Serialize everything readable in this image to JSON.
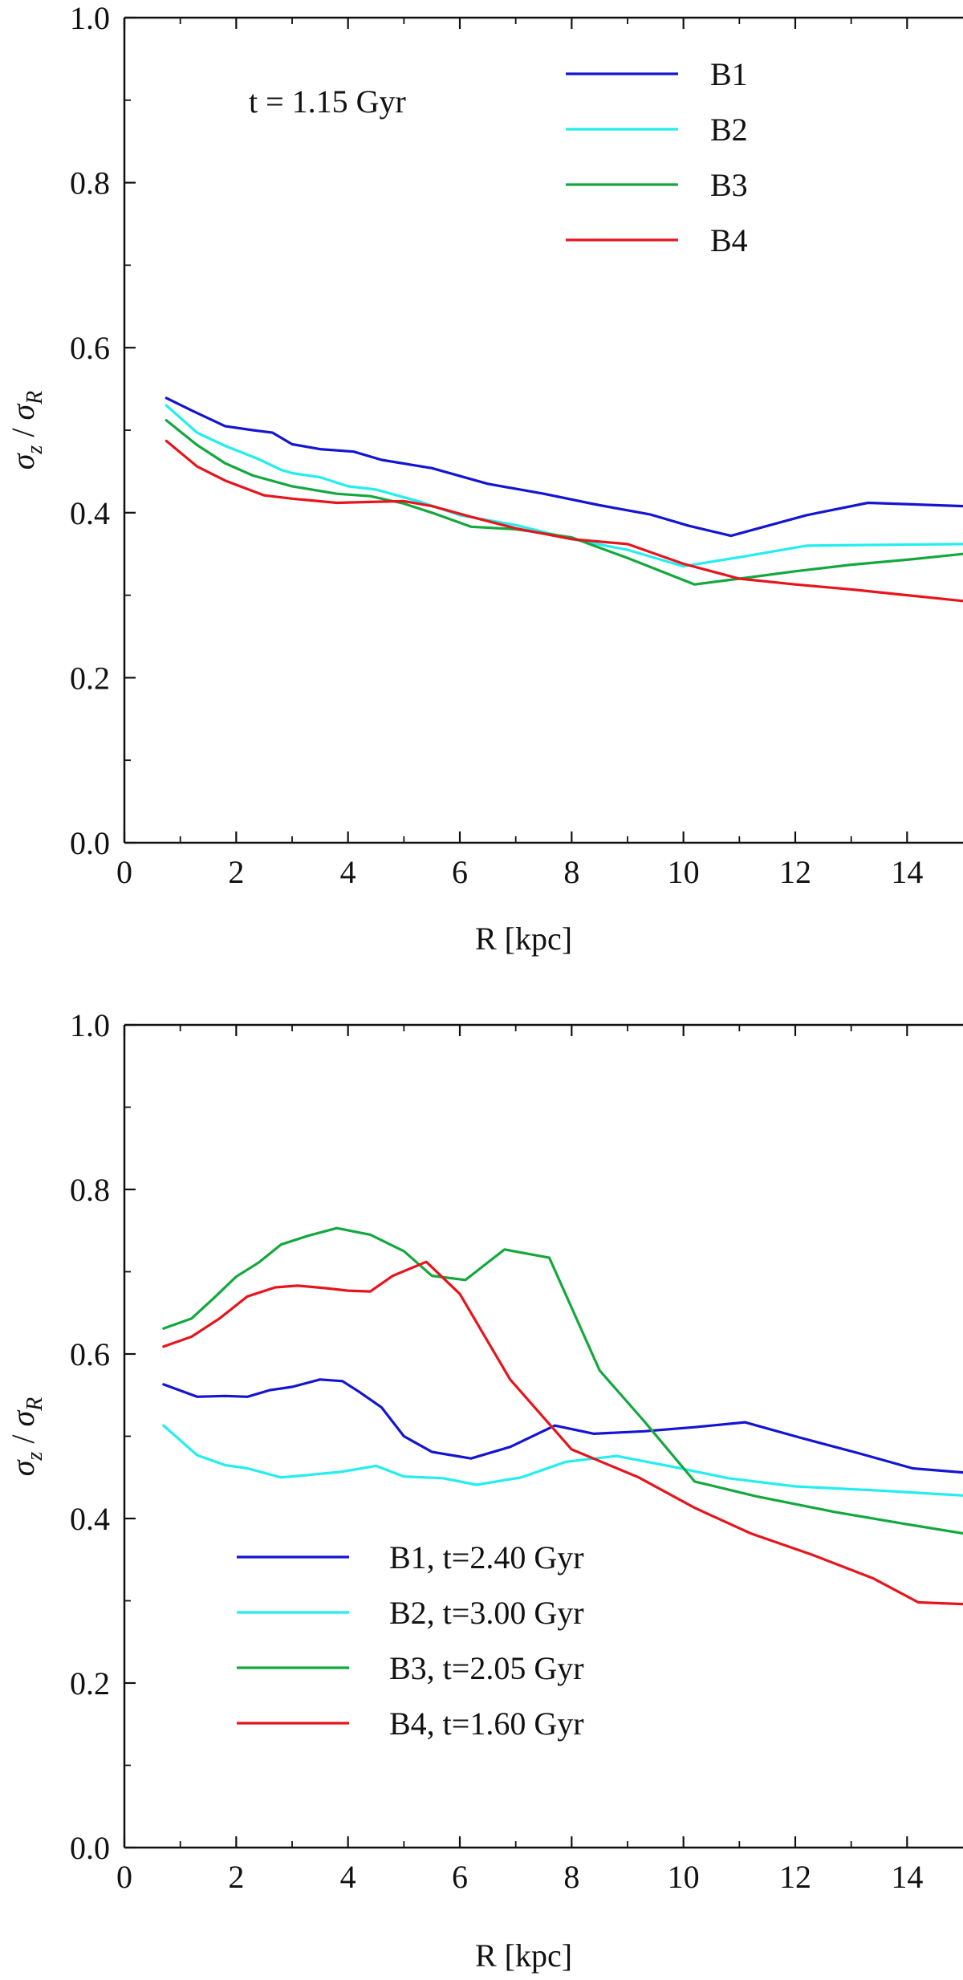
{
  "chart_data": [
    {
      "type": "line",
      "title": "",
      "annotation": "t = 1.15 Gyr",
      "xlabel": "R [kpc]",
      "ylabel": "σz / σR",
      "ylabel_parts": {
        "sigma": "σ",
        "num_sub": "z",
        "sep": " / ",
        "den_sub": "R"
      },
      "xlim": [
        0,
        15
      ],
      "ylim": [
        0,
        1
      ],
      "xticks": [
        "0",
        "2",
        "4",
        "6",
        "8",
        "10",
        "12",
        "14"
      ],
      "yticks": [
        "0.0",
        "0.2",
        "0.4",
        "0.6",
        "0.8",
        "1.0"
      ],
      "grid": false,
      "legend_position": "top-right",
      "series": [
        {
          "name": "B1",
          "color": "#1414d2",
          "x": [
            0.75,
            1.2,
            1.8,
            2.3,
            2.65,
            3.0,
            3.5,
            4.1,
            4.6,
            5.5,
            6.5,
            7.5,
            8.5,
            9.4,
            10.1,
            10.85,
            12.2,
            13.3,
            15.0
          ],
          "y": [
            0.539,
            0.524,
            0.505,
            0.5,
            0.497,
            0.483,
            0.477,
            0.474,
            0.464,
            0.454,
            0.435,
            0.423,
            0.409,
            0.398,
            0.384,
            0.372,
            0.397,
            0.412,
            0.408
          ]
        },
        {
          "name": "B2",
          "color": "#22eeee",
          "x": [
            0.75,
            1.3,
            1.8,
            2.4,
            2.8,
            3.0,
            3.5,
            4.0,
            4.5,
            5.3,
            6.0,
            7.0,
            8.0,
            9.0,
            10.0,
            11.0,
            12.2,
            13.5,
            15.0
          ],
          "y": [
            0.53,
            0.497,
            0.481,
            0.465,
            0.452,
            0.448,
            0.443,
            0.432,
            0.428,
            0.413,
            0.397,
            0.385,
            0.368,
            0.355,
            0.335,
            0.346,
            0.36,
            0.361,
            0.362
          ]
        },
        {
          "name": "B3",
          "color": "#13a83e",
          "x": [
            0.75,
            1.3,
            1.8,
            2.3,
            3.0,
            3.8,
            4.4,
            5.0,
            5.5,
            6.2,
            7.0,
            8.0,
            9.0,
            10.2,
            11.0,
            12.0,
            13.0,
            14.0,
            15.0
          ],
          "y": [
            0.512,
            0.482,
            0.46,
            0.445,
            0.432,
            0.423,
            0.42,
            0.411,
            0.4,
            0.383,
            0.38,
            0.37,
            0.345,
            0.313,
            0.32,
            0.329,
            0.337,
            0.343,
            0.35
          ]
        },
        {
          "name": "B4",
          "color": "#e8141c",
          "x": [
            0.75,
            1.3,
            1.8,
            2.5,
            3.0,
            3.8,
            4.4,
            5.0,
            5.5,
            6.2,
            7.0,
            8.0,
            9.0,
            10.0,
            11.0,
            12.0,
            13.0,
            14.0,
            15.0
          ],
          "y": [
            0.487,
            0.456,
            0.439,
            0.421,
            0.417,
            0.412,
            0.413,
            0.414,
            0.408,
            0.395,
            0.381,
            0.368,
            0.362,
            0.338,
            0.32,
            0.313,
            0.307,
            0.3,
            0.293
          ]
        }
      ]
    },
    {
      "type": "line",
      "title": "",
      "annotation": "",
      "xlabel": "R [kpc]",
      "ylabel": "σz / σR",
      "ylabel_parts": {
        "sigma": "σ",
        "num_sub": "z",
        "sep": " / ",
        "den_sub": "R"
      },
      "xlim": [
        0,
        15
      ],
      "ylim": [
        0,
        1
      ],
      "xticks": [
        "0",
        "2",
        "4",
        "6",
        "8",
        "10",
        "12",
        "14"
      ],
      "yticks": [
        "0.0",
        "0.2",
        "0.4",
        "0.6",
        "0.8",
        "1.0"
      ],
      "grid": false,
      "legend_position": "bottom-left",
      "series": [
        {
          "name": "B1, t=2.40 Gyr",
          "color": "#1414d2",
          "x": [
            0.7,
            1.3,
            1.8,
            2.2,
            2.6,
            3.0,
            3.5,
            3.9,
            4.2,
            4.6,
            5.0,
            5.5,
            6.2,
            6.9,
            7.7,
            8.4,
            9.3,
            10.2,
            11.1,
            12.1,
            13.1,
            14.1,
            15.0
          ],
          "y": [
            0.563,
            0.548,
            0.549,
            0.548,
            0.556,
            0.56,
            0.569,
            0.567,
            0.554,
            0.535,
            0.5,
            0.481,
            0.473,
            0.487,
            0.513,
            0.503,
            0.506,
            0.511,
            0.517,
            0.498,
            0.48,
            0.461,
            0.456
          ]
        },
        {
          "name": "B2, t=3.00 Gyr",
          "color": "#22eeee",
          "x": [
            0.7,
            1.3,
            1.8,
            2.2,
            2.8,
            3.3,
            3.9,
            4.5,
            5.0,
            5.7,
            6.3,
            7.1,
            7.9,
            8.8,
            9.8,
            10.8,
            12.0,
            13.5,
            15.0
          ],
          "y": [
            0.513,
            0.477,
            0.465,
            0.461,
            0.45,
            0.453,
            0.457,
            0.464,
            0.451,
            0.449,
            0.441,
            0.45,
            0.469,
            0.476,
            0.463,
            0.449,
            0.439,
            0.434,
            0.428
          ]
        },
        {
          "name": "B3, t=2.05 Gyr",
          "color": "#13a83e",
          "x": [
            0.7,
            1.2,
            1.6,
            2.0,
            2.4,
            2.8,
            3.3,
            3.8,
            4.4,
            5.0,
            5.5,
            6.1,
            6.8,
            7.6,
            8.5,
            9.3,
            10.2,
            11.3,
            12.7,
            14.0,
            15.0
          ],
          "y": [
            0.631,
            0.643,
            0.668,
            0.694,
            0.711,
            0.733,
            0.744,
            0.753,
            0.745,
            0.725,
            0.695,
            0.69,
            0.727,
            0.717,
            0.58,
            0.518,
            0.445,
            0.427,
            0.408,
            0.393,
            0.382
          ]
        },
        {
          "name": "B4, t=1.60 Gyr",
          "color": "#e8141c",
          "x": [
            0.7,
            1.2,
            1.7,
            2.2,
            2.7,
            3.1,
            3.6,
            4.0,
            4.4,
            4.8,
            5.4,
            6.0,
            6.9,
            8.0,
            9.2,
            10.2,
            11.2,
            12.3,
            13.4,
            14.2,
            15.0
          ],
          "y": [
            0.609,
            0.621,
            0.643,
            0.67,
            0.681,
            0.683,
            0.68,
            0.677,
            0.676,
            0.695,
            0.712,
            0.673,
            0.569,
            0.484,
            0.45,
            0.413,
            0.382,
            0.356,
            0.327,
            0.298,
            0.296
          ]
        }
      ]
    }
  ]
}
